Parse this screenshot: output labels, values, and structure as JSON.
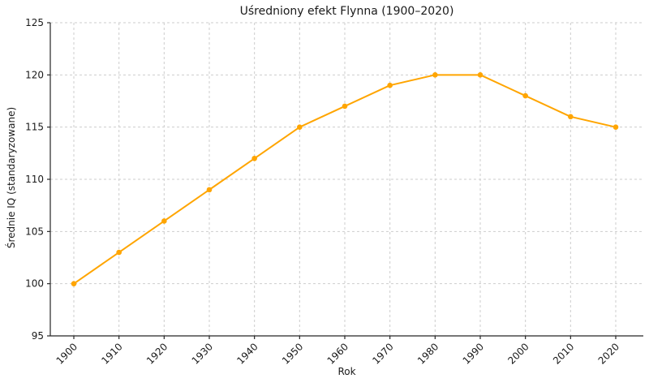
{
  "chart_data": {
    "type": "line",
    "title": "Uśredniony efekt Flynna (1900–2020)",
    "xlabel": "Rok",
    "ylabel": "Średnie IQ (standaryzowane)",
    "categories": [
      1900,
      1910,
      1920,
      1930,
      1940,
      1950,
      1960,
      1970,
      1980,
      1990,
      2000,
      2010,
      2020
    ],
    "series": [
      {
        "name": "Średnie IQ",
        "values": [
          100,
          103,
          106,
          109,
          112,
          115,
          117,
          119,
          120,
          120,
          118,
          116,
          115
        ]
      }
    ],
    "ylim": [
      95,
      125
    ],
    "yticks": [
      95,
      100,
      105,
      110,
      115,
      120,
      125
    ],
    "xticks": [
      1900,
      1910,
      1920,
      1930,
      1940,
      1950,
      1960,
      1970,
      1980,
      1990,
      2000,
      2010,
      2020
    ],
    "grid": true,
    "grid_style": "dashed",
    "legend_position": "none",
    "colors": {
      "line": "#FFA500",
      "marker": "#FFA500",
      "grid": "#cdcdcd",
      "spine": "#262626",
      "text": "#1a1a1a",
      "background": "#ffffff"
    },
    "marker": "circle",
    "x_tick_rotation_deg": 45
  }
}
